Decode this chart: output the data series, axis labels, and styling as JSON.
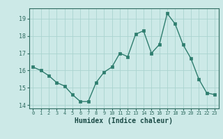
{
  "x": [
    0,
    1,
    2,
    3,
    4,
    5,
    6,
    7,
    8,
    9,
    10,
    11,
    12,
    13,
    14,
    15,
    16,
    17,
    18,
    19,
    20,
    21,
    22,
    23
  ],
  "y": [
    16.2,
    16.0,
    15.7,
    15.3,
    15.1,
    14.6,
    14.2,
    14.2,
    15.3,
    15.9,
    16.2,
    17.0,
    16.8,
    18.1,
    18.3,
    17.0,
    17.5,
    19.3,
    18.7,
    17.5,
    16.7,
    15.5,
    14.7,
    14.6
  ],
  "xlim": [
    -0.5,
    23.5
  ],
  "ylim": [
    13.8,
    19.6
  ],
  "yticks": [
    14,
    15,
    16,
    17,
    18,
    19
  ],
  "xticks": [
    0,
    1,
    2,
    3,
    4,
    5,
    6,
    7,
    8,
    9,
    10,
    11,
    12,
    13,
    14,
    15,
    16,
    17,
    18,
    19,
    20,
    21,
    22,
    23
  ],
  "xlabel": "Humidex (Indice chaleur)",
  "line_color": "#2e7d6e",
  "marker": "s",
  "marker_size": 2.5,
  "bg_color": "#cce9e7",
  "grid_color": "#aad4d0",
  "tick_color": "#2e6b60",
  "label_color": "#1a4a45",
  "spine_color": "#2e6b60"
}
